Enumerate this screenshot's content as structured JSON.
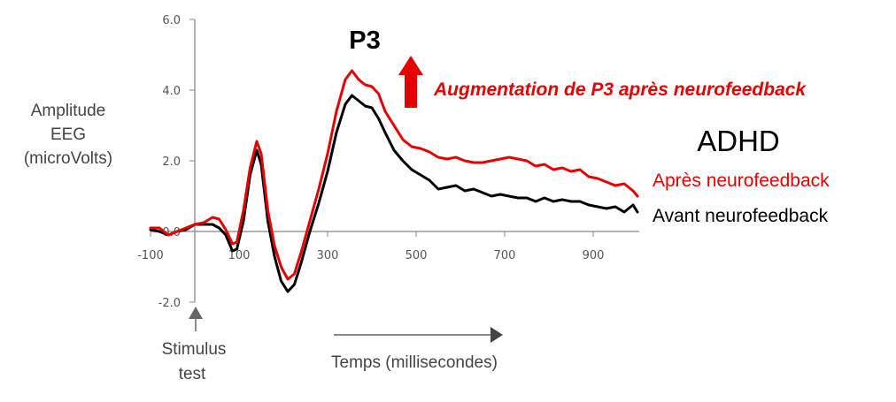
{
  "chart_data": {
    "type": "line",
    "title": "",
    "ylabel": [
      "Amplitude",
      "EEG",
      "(microVolts)"
    ],
    "xlabel": "Temps (millisecondes)",
    "xlim": [
      -100,
      1000
    ],
    "ylim": [
      -2.0,
      6.0
    ],
    "x_ticks": [
      "-100",
      "100",
      "300",
      "500",
      "700",
      "900"
    ],
    "y_ticks": [
      "6.0",
      "4.0",
      "2.0",
      "0.0",
      "-2.0"
    ],
    "grid": "off",
    "series": [
      {
        "name": "Après neurofeedback",
        "color": "#e60000",
        "points": [
          [
            -100,
            0.1
          ],
          [
            -80,
            0.1
          ],
          [
            -60,
            -0.1
          ],
          [
            -40,
            0.0
          ],
          [
            -20,
            0.1
          ],
          [
            0,
            0.2
          ],
          [
            20,
            0.25
          ],
          [
            40,
            0.4
          ],
          [
            55,
            0.35
          ],
          [
            70,
            0.05
          ],
          [
            85,
            -0.35
          ],
          [
            95,
            -0.3
          ],
          [
            110,
            0.6
          ],
          [
            125,
            1.8
          ],
          [
            140,
            2.55
          ],
          [
            150,
            2.2
          ],
          [
            165,
            0.6
          ],
          [
            180,
            -0.4
          ],
          [
            195,
            -1.0
          ],
          [
            210,
            -1.35
          ],
          [
            225,
            -1.2
          ],
          [
            240,
            -0.6
          ],
          [
            260,
            0.3
          ],
          [
            280,
            1.2
          ],
          [
            300,
            2.2
          ],
          [
            320,
            3.4
          ],
          [
            340,
            4.3
          ],
          [
            355,
            4.55
          ],
          [
            370,
            4.3
          ],
          [
            385,
            4.15
          ],
          [
            400,
            4.1
          ],
          [
            415,
            3.9
          ],
          [
            430,
            3.4
          ],
          [
            450,
            3.0
          ],
          [
            470,
            2.6
          ],
          [
            490,
            2.4
          ],
          [
            510,
            2.35
          ],
          [
            530,
            2.25
          ],
          [
            550,
            2.1
          ],
          [
            570,
            2.05
          ],
          [
            590,
            2.1
          ],
          [
            610,
            2.0
          ],
          [
            630,
            1.95
          ],
          [
            650,
            1.95
          ],
          [
            670,
            2.0
          ],
          [
            690,
            2.05
          ],
          [
            710,
            2.1
          ],
          [
            730,
            2.05
          ],
          [
            750,
            2.0
          ],
          [
            770,
            1.85
          ],
          [
            790,
            1.9
          ],
          [
            810,
            1.75
          ],
          [
            830,
            1.8
          ],
          [
            850,
            1.7
          ],
          [
            870,
            1.75
          ],
          [
            890,
            1.55
          ],
          [
            910,
            1.5
          ],
          [
            930,
            1.4
          ],
          [
            950,
            1.3
          ],
          [
            970,
            1.35
          ],
          [
            990,
            1.15
          ],
          [
            1000,
            1.0
          ]
        ]
      },
      {
        "name": "Avant neurofeedback",
        "color": "#000000",
        "points": [
          [
            -100,
            0.05
          ],
          [
            -80,
            0.0
          ],
          [
            -60,
            -0.1
          ],
          [
            -40,
            0.0
          ],
          [
            -20,
            0.05
          ],
          [
            0,
            0.2
          ],
          [
            20,
            0.2
          ],
          [
            40,
            0.2
          ],
          [
            55,
            0.1
          ],
          [
            70,
            -0.1
          ],
          [
            85,
            -0.55
          ],
          [
            95,
            -0.5
          ],
          [
            110,
            0.3
          ],
          [
            125,
            1.6
          ],
          [
            140,
            2.3
          ],
          [
            150,
            1.9
          ],
          [
            165,
            0.3
          ],
          [
            180,
            -0.7
          ],
          [
            195,
            -1.4
          ],
          [
            210,
            -1.7
          ],
          [
            225,
            -1.5
          ],
          [
            240,
            -0.9
          ],
          [
            260,
            0.0
          ],
          [
            280,
            0.8
          ],
          [
            300,
            1.7
          ],
          [
            320,
            2.8
          ],
          [
            340,
            3.6
          ],
          [
            355,
            3.85
          ],
          [
            370,
            3.7
          ],
          [
            385,
            3.55
          ],
          [
            400,
            3.5
          ],
          [
            415,
            3.2
          ],
          [
            430,
            2.8
          ],
          [
            450,
            2.3
          ],
          [
            470,
            2.0
          ],
          [
            490,
            1.75
          ],
          [
            510,
            1.6
          ],
          [
            530,
            1.45
          ],
          [
            550,
            1.2
          ],
          [
            570,
            1.25
          ],
          [
            590,
            1.3
          ],
          [
            610,
            1.15
          ],
          [
            630,
            1.2
          ],
          [
            650,
            1.1
          ],
          [
            670,
            1.0
          ],
          [
            690,
            1.05
          ],
          [
            710,
            1.0
          ],
          [
            730,
            0.95
          ],
          [
            750,
            0.95
          ],
          [
            770,
            0.85
          ],
          [
            790,
            0.95
          ],
          [
            810,
            0.85
          ],
          [
            830,
            0.9
          ],
          [
            850,
            0.85
          ],
          [
            870,
            0.85
          ],
          [
            890,
            0.75
          ],
          [
            910,
            0.7
          ],
          [
            930,
            0.65
          ],
          [
            950,
            0.7
          ],
          [
            970,
            0.55
          ],
          [
            990,
            0.75
          ],
          [
            1000,
            0.55
          ]
        ]
      }
    ],
    "annotations": {
      "peak_label": "P3",
      "augmentation": "Augmentation de P3 après neurofeedback",
      "group": "ADHD",
      "stimulus": [
        "Stimulus",
        "test"
      ]
    },
    "legend_position": "right"
  },
  "colors": {
    "red": "#e60000",
    "black": "#000000",
    "axis": "#888888",
    "arrow": "#666666"
  }
}
